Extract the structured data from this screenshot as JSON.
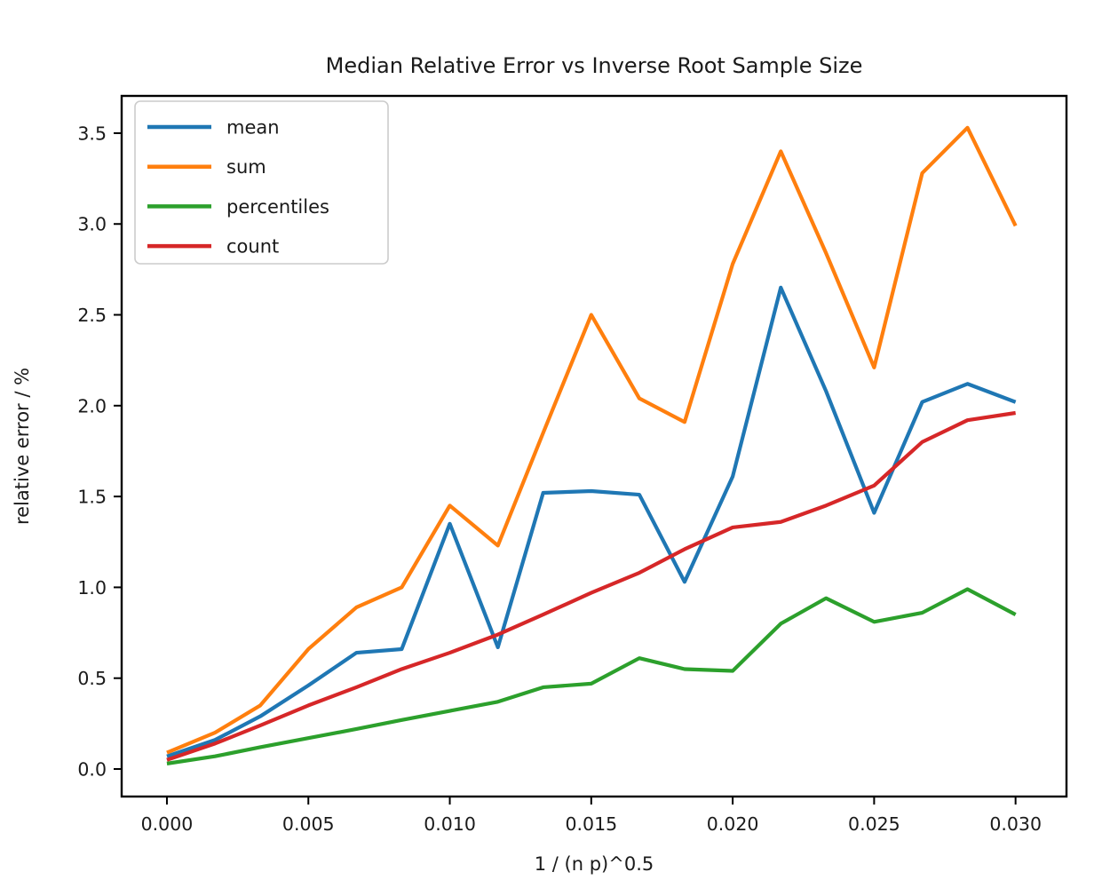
{
  "figure": {
    "background": "#ffffff",
    "text_color": "#1a1a1a",
    "spine_color": "#000000",
    "legend_border_color": "#cccccc"
  },
  "chart_data": {
    "type": "line",
    "title": "Median Relative Error vs Inverse Root Sample Size",
    "xlabel": "1 / (n p)^0.5",
    "ylabel": "relative error / %",
    "xlim": [
      -0.0016,
      0.0318
    ],
    "ylim": [
      -0.1515,
      3.705
    ],
    "x_ticks": [
      0.0,
      0.005,
      0.01,
      0.015,
      0.02,
      0.025,
      0.03
    ],
    "x_tick_labels": [
      "0.000",
      "0.005",
      "0.010",
      "0.015",
      "0.020",
      "0.025",
      "0.030"
    ],
    "y_ticks": [
      0.0,
      0.5,
      1.0,
      1.5,
      2.0,
      2.5,
      3.0,
      3.5
    ],
    "y_tick_labels": [
      "0.0",
      "0.5",
      "1.0",
      "1.5",
      "2.0",
      "2.5",
      "3.0",
      "3.5"
    ],
    "grid": false,
    "legend_position": "upper left",
    "x": [
      0.0,
      0.0017,
      0.0033,
      0.005,
      0.0067,
      0.0083,
      0.01,
      0.0117,
      0.0133,
      0.015,
      0.0167,
      0.0183,
      0.02,
      0.0217,
      0.0233,
      0.025,
      0.0267,
      0.0283,
      0.03
    ],
    "series": [
      {
        "name": "mean",
        "color": "#1f77b4",
        "values": [
          0.07,
          0.16,
          0.29,
          0.46,
          0.64,
          0.66,
          1.35,
          0.67,
          1.52,
          1.53,
          1.51,
          1.03,
          1.61,
          2.65,
          2.08,
          1.41,
          2.02,
          2.12,
          2.02
        ]
      },
      {
        "name": "sum",
        "color": "#ff7f0e",
        "values": [
          0.09,
          0.2,
          0.35,
          0.66,
          0.89,
          1.0,
          1.45,
          1.23,
          1.85,
          2.5,
          2.04,
          1.91,
          2.78,
          3.4,
          2.84,
          2.21,
          3.28,
          3.53,
          2.99
        ]
      },
      {
        "name": "percentiles",
        "color": "#2ca02c",
        "values": [
          0.03,
          0.07,
          0.12,
          0.17,
          0.22,
          0.27,
          0.32,
          0.37,
          0.45,
          0.47,
          0.61,
          0.55,
          0.54,
          0.8,
          0.94,
          0.81,
          0.86,
          0.99,
          0.85
        ]
      },
      {
        "name": "count",
        "color": "#d62728",
        "values": [
          0.05,
          0.14,
          0.24,
          0.35,
          0.45,
          0.55,
          0.64,
          0.74,
          0.85,
          0.97,
          1.08,
          1.21,
          1.33,
          1.36,
          1.45,
          1.56,
          1.8,
          1.92,
          1.96
        ]
      }
    ]
  }
}
